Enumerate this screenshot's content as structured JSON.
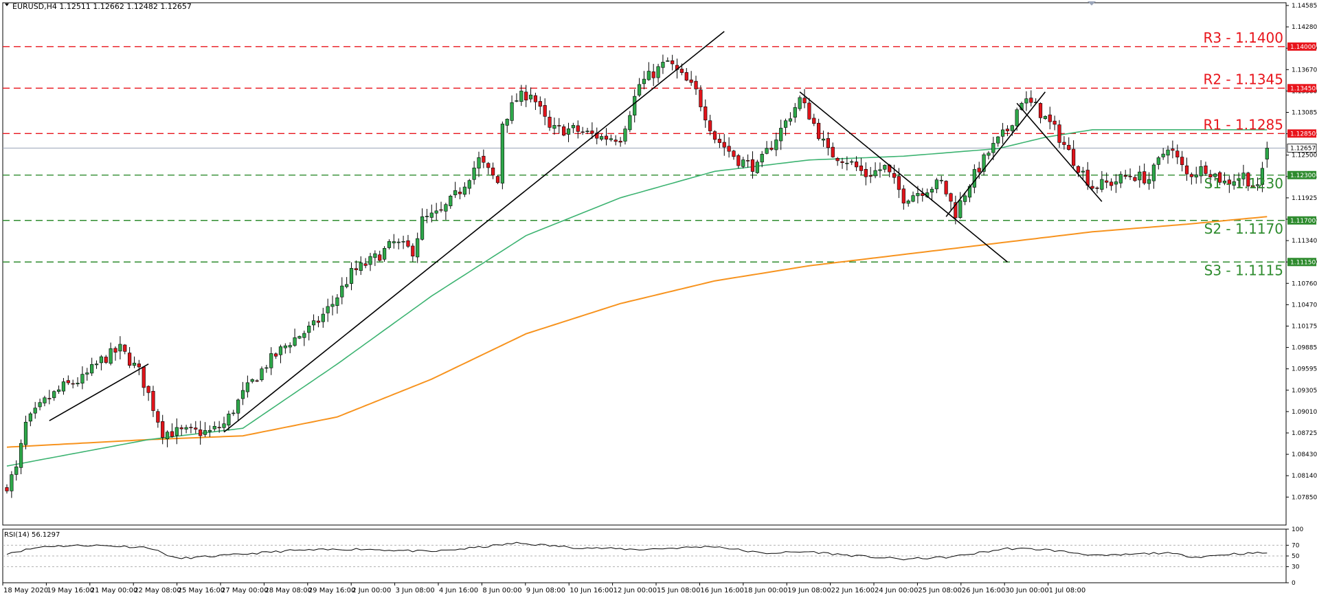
{
  "chart_data": {
    "type": "candlestick",
    "title": "EURUSD,H4  1.12511 1.12662 1.12482 1.12657",
    "symbol": "EURUSD,H4",
    "ohlc_header": [
      "1.12511",
      "1.12662",
      "1.12482",
      "1.12657"
    ],
    "current_price_label": "1.12657",
    "current_price": 1.12657,
    "ylim": [
      1.0767,
      1.1458
    ],
    "price_ticks": [
      "1.14585",
      "1.14280",
      "1.13970",
      "1.13670",
      "1.13380",
      "1.13085",
      "1.12795",
      "1.12500",
      "1.12215",
      "1.11925",
      "1.11635",
      "1.11340",
      "1.11050",
      "1.10760",
      "1.10470",
      "1.10175",
      "1.09885",
      "1.09595",
      "1.09305",
      "1.09010",
      "1.08725",
      "1.08430",
      "1.08140",
      "1.07850"
    ],
    "time_labels": [
      "18 May 2020",
      "19 May 16:00",
      "21 May 00:00",
      "22 May 08:00",
      "25 May 16:00",
      "27 May 00:00",
      "28 May 08:00",
      "29 May 16:00",
      "2 Jun 00:00",
      "3 Jun 08:00",
      "4 Jun 16:00",
      "8 Jun 00:00",
      "9 Jun 08:00",
      "10 Jun 16:00",
      "12 Jun 00:00",
      "15 Jun 08:00",
      "16 Jun 16:00",
      "18 Jun 00:00",
      "19 Jun 08:00",
      "22 Jun 16:00",
      "24 Jun 00:00",
      "25 Jun 08:00",
      "26 Jun 16:00",
      "30 Jun 00:00",
      "1 Jul 08:00"
    ],
    "levels": [
      {
        "name": "R3",
        "label": "R3 - 1.1400",
        "box": "1.14000",
        "value": 1.14,
        "color": "#e8141b"
      },
      {
        "name": "R2",
        "label": "R2 - 1.1345",
        "box": "1.13450",
        "value": 1.1345,
        "color": "#e8141b"
      },
      {
        "name": "R1",
        "label": "R1 - 1.1285",
        "box": "1.12850",
        "value": 1.1285,
        "color": "#e8141b"
      },
      {
        "name": "S1",
        "label": "S1 - 1.1230",
        "box": "1.12300",
        "value": 1.123,
        "color": "#2e8b2e"
      },
      {
        "name": "S2",
        "label": "S2 - 1.1170",
        "box": "1.11700",
        "value": 1.117,
        "color": "#2e8b2e"
      },
      {
        "name": "S3",
        "label": "S3 - 1.1115",
        "box": "1.11150",
        "value": 1.1115,
        "color": "#2e8b2e"
      }
    ],
    "close_anchors": [
      [
        0,
        1.082
      ],
      [
        2,
        1.084
      ],
      [
        4,
        1.09
      ],
      [
        8,
        1.093
      ],
      [
        12,
        1.095
      ],
      [
        16,
        1.096
      ],
      [
        20,
        1.0985
      ],
      [
        24,
        1.1
      ],
      [
        28,
        1.097
      ],
      [
        30,
        1.094
      ],
      [
        33,
        1.089
      ],
      [
        38,
        1.089
      ],
      [
        43,
        1.089
      ],
      [
        46,
        1.09
      ],
      [
        50,
        1.094
      ],
      [
        55,
        1.098
      ],
      [
        60,
        1.101
      ],
      [
        65,
        1.103
      ],
      [
        69,
        1.106
      ],
      [
        73,
        1.11
      ],
      [
        78,
        1.112
      ],
      [
        82,
        1.114
      ],
      [
        86,
        1.113
      ],
      [
        88,
        1.117
      ],
      [
        92,
        1.118
      ],
      [
        96,
        1.121
      ],
      [
        100,
        1.125
      ],
      [
        104,
        1.122
      ],
      [
        105,
        1.13
      ],
      [
        108,
        1.133
      ],
      [
        111,
        1.134
      ],
      [
        115,
        1.129
      ],
      [
        120,
        1.129
      ],
      [
        126,
        1.128
      ],
      [
        130,
        1.128
      ],
      [
        134,
        1.135
      ],
      [
        138,
        1.137
      ],
      [
        140,
        1.138
      ],
      [
        143,
        1.136
      ],
      [
        146,
        1.134
      ],
      [
        150,
        1.128
      ],
      [
        155,
        1.125
      ],
      [
        159,
        1.124
      ],
      [
        163,
        1.128
      ],
      [
        168,
        1.133
      ],
      [
        170,
        1.131
      ],
      [
        174,
        1.126
      ],
      [
        178,
        1.125
      ],
      [
        182,
        1.123
      ],
      [
        186,
        1.124
      ],
      [
        190,
        1.12
      ],
      [
        194,
        1.121
      ],
      [
        198,
        1.122
      ],
      [
        201,
        1.118
      ],
      [
        204,
        1.122
      ],
      [
        208,
        1.126
      ],
      [
        212,
        1.129
      ],
      [
        215,
        1.133
      ],
      [
        218,
        1.132
      ],
      [
        222,
        1.129
      ],
      [
        226,
        1.125
      ],
      [
        230,
        1.1215
      ],
      [
        234,
        1.122
      ],
      [
        238,
        1.123
      ],
      [
        242,
        1.1225
      ],
      [
        246,
        1.127
      ],
      [
        250,
        1.123
      ],
      [
        254,
        1.124
      ],
      [
        258,
        1.122
      ],
      [
        262,
        1.123
      ],
      [
        265,
        1.121
      ],
      [
        267,
        1.1265
      ]
    ],
    "sma_green_anchors": [
      [
        0,
        1.0845
      ],
      [
        30,
        1.088
      ],
      [
        50,
        1.0895
      ],
      [
        70,
        1.098
      ],
      [
        90,
        1.107
      ],
      [
        110,
        1.115
      ],
      [
        130,
        1.12
      ],
      [
        150,
        1.1235
      ],
      [
        170,
        1.125
      ],
      [
        190,
        1.1255
      ],
      [
        210,
        1.1265
      ],
      [
        220,
        1.128
      ],
      [
        230,
        1.129
      ],
      [
        250,
        1.129
      ],
      [
        267,
        1.129
      ]
    ],
    "sma_orange_anchors": [
      [
        0,
        1.087
      ],
      [
        30,
        1.088
      ],
      [
        50,
        1.0885
      ],
      [
        70,
        1.091
      ],
      [
        90,
        1.096
      ],
      [
        110,
        1.102
      ],
      [
        130,
        1.106
      ],
      [
        150,
        1.109
      ],
      [
        170,
        1.111
      ],
      [
        190,
        1.1125
      ],
      [
        210,
        1.114
      ],
      [
        230,
        1.1155
      ],
      [
        250,
        1.1165
      ],
      [
        267,
        1.1175
      ]
    ],
    "trendlines": [
      {
        "from": [
          9,
          1.0905
        ],
        "to": [
          30,
          1.098
        ]
      },
      {
        "from": [
          46,
          1.089
        ],
        "to": [
          152,
          1.142
        ]
      },
      {
        "from": [
          168,
          1.134
        ],
        "to": [
          212,
          1.1115
        ]
      },
      {
        "from": [
          199,
          1.1175
        ],
        "to": [
          220,
          1.134
        ]
      },
      {
        "from": [
          214,
          1.1325
        ],
        "to": [
          232,
          1.1195
        ]
      }
    ],
    "rsi": {
      "title": "RSI(14) 56.1297",
      "value": 56.1297,
      "ticks": [
        "100",
        "70",
        "50",
        "30",
        "0"
      ],
      "levels": [
        70,
        50,
        30
      ],
      "anchors": [
        [
          0,
          55
        ],
        [
          8,
          68
        ],
        [
          18,
          70
        ],
        [
          30,
          66
        ],
        [
          36,
          45
        ],
        [
          48,
          52
        ],
        [
          60,
          60
        ],
        [
          75,
          63
        ],
        [
          90,
          58
        ],
        [
          100,
          66
        ],
        [
          108,
          74
        ],
        [
          120,
          66
        ],
        [
          134,
          62
        ],
        [
          150,
          68
        ],
        [
          160,
          55
        ],
        [
          170,
          58
        ],
        [
          180,
          50
        ],
        [
          190,
          44
        ],
        [
          200,
          48
        ],
        [
          212,
          64
        ],
        [
          220,
          62
        ],
        [
          232,
          50
        ],
        [
          245,
          56
        ],
        [
          252,
          48
        ],
        [
          260,
          54
        ],
        [
          267,
          56
        ]
      ]
    }
  }
}
